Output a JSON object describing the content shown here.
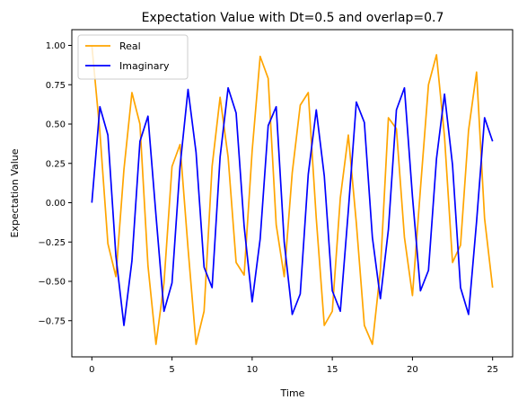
{
  "chart_data": {
    "type": "line",
    "title": "Expectation Value with Dt=0.5 and overlap=0.7",
    "xlabel": "Time",
    "ylabel": "Expectation Value",
    "xlim": [
      -1.25,
      26.25
    ],
    "ylim": [
      -0.98,
      1.1
    ],
    "xticks": [
      0,
      5,
      10,
      15,
      20,
      25
    ],
    "yticks": [
      -0.75,
      -0.5,
      -0.25,
      0.0,
      0.25,
      0.5,
      0.75,
      1.0
    ],
    "xtick_labels": [
      "0",
      "5",
      "10",
      "15",
      "20",
      "25"
    ],
    "ytick_labels": [
      "−0.75",
      "−0.50",
      "−0.25",
      "0.00",
      "0.25",
      "0.50",
      "0.75",
      "1.00"
    ],
    "grid": false,
    "legend_position": "upper-left",
    "x": [
      0,
      0.5,
      1,
      1.5,
      2,
      2.5,
      3,
      3.5,
      4,
      4.5,
      5,
      5.5,
      6,
      6.5,
      7,
      7.5,
      8,
      8.5,
      9,
      9.5,
      10,
      10.5,
      11,
      11.5,
      12,
      12.5,
      13,
      13.5,
      14,
      14.5,
      15,
      15.5,
      16,
      16.5,
      17,
      17.5,
      18,
      18.5,
      19,
      19.5,
      20,
      20.5,
      21,
      21.5,
      22,
      22.5,
      23,
      23.5,
      24,
      24.5,
      25
    ],
    "series": [
      {
        "name": "Real",
        "color": "#FFA500",
        "values": [
          1.0,
          0.45,
          -0.26,
          -0.47,
          0.21,
          0.7,
          0.5,
          -0.4,
          -0.9,
          -0.51,
          0.23,
          0.37,
          -0.29,
          -0.9,
          -0.69,
          0.23,
          0.67,
          0.29,
          -0.38,
          -0.46,
          0.33,
          0.93,
          0.79,
          -0.14,
          -0.47,
          0.19,
          0.62,
          0.7,
          -0.1,
          -0.78,
          -0.69,
          0.03,
          0.43,
          -0.13,
          -0.78,
          -0.9,
          -0.43,
          0.54,
          0.47,
          -0.22,
          -0.59,
          0.09,
          0.75,
          0.94,
          0.42,
          -0.38,
          -0.27,
          0.46,
          0.83,
          -0.1,
          -0.54
        ]
      },
      {
        "name": "Imaginary",
        "color": "#0000FF",
        "values": [
          0.0,
          0.61,
          0.43,
          -0.34,
          -0.78,
          -0.37,
          0.39,
          0.55,
          -0.08,
          -0.69,
          -0.51,
          0.23,
          0.72,
          0.32,
          -0.41,
          -0.54,
          0.29,
          0.73,
          0.57,
          -0.15,
          -0.63,
          -0.23,
          0.49,
          0.61,
          -0.25,
          -0.71,
          -0.58,
          0.18,
          0.59,
          0.17,
          -0.56,
          -0.69,
          -0.05,
          0.64,
          0.51,
          -0.22,
          -0.61,
          -0.17,
          0.59,
          0.73,
          0.04,
          -0.56,
          -0.43,
          0.28,
          0.69,
          0.24,
          -0.54,
          -0.71,
          -0.12,
          0.54,
          0.39
        ]
      }
    ]
  }
}
